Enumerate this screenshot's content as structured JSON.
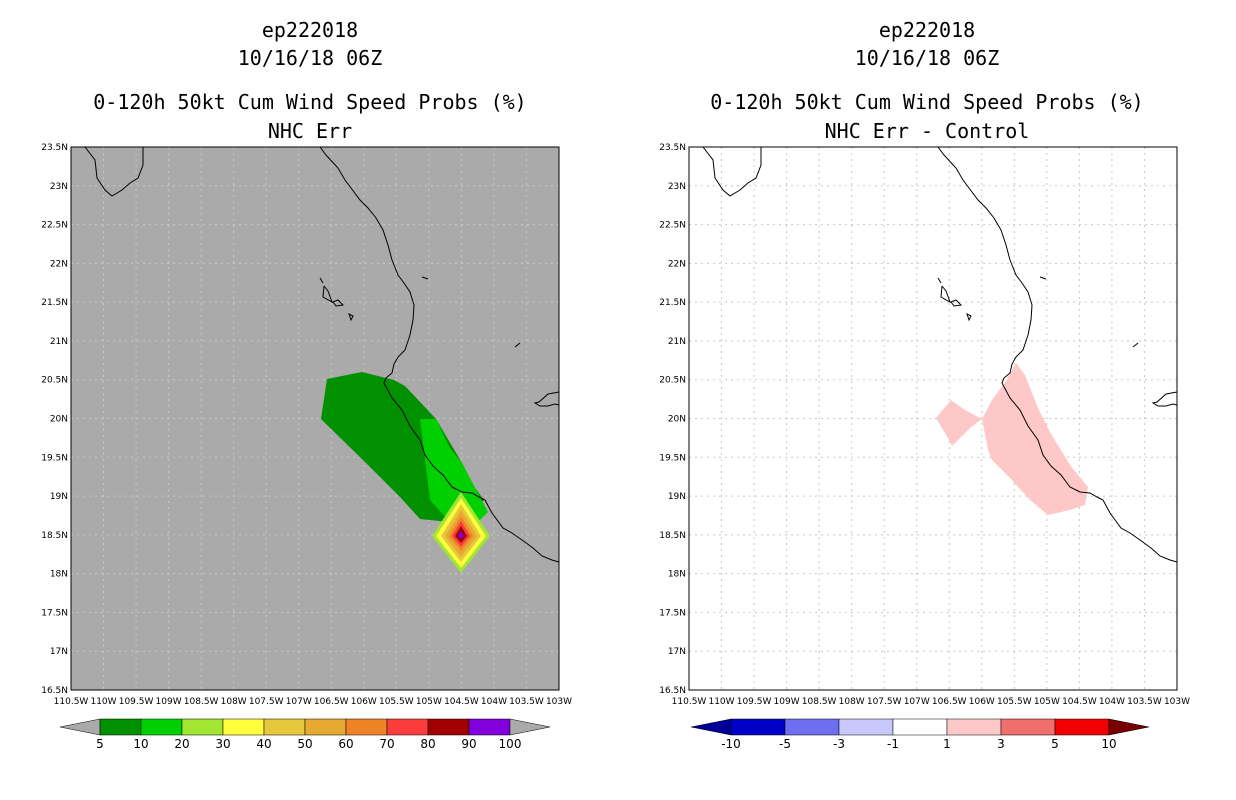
{
  "left": {
    "title_line1": "ep222018",
    "title_line2": "10/16/18 06Z",
    "title_line3": "0-120h 50kt Cum Wind Speed Probs (%)",
    "title_line4": "NHC Err",
    "colorbar_labels": [
      "5",
      "10",
      "20",
      "30",
      "40",
      "50",
      "60",
      "70",
      "80",
      "90",
      "100"
    ],
    "colorbar_colors": [
      "#009000",
      "#00d000",
      "#a0e632",
      "#ffff3c",
      "#e6c83c",
      "#e6aa32",
      "#f08228",
      "#fa3c3c",
      "#a00000",
      "#8200dc"
    ],
    "colorbar_under": "#aaaaaa",
    "colorbar_over": "#aaaaaa",
    "background": "#aaaaaa"
  },
  "right": {
    "title_line1": "ep222018",
    "title_line2": "10/16/18 06Z",
    "title_line3": "0-120h 50kt Cum Wind Speed Probs (%)",
    "title_line4": "NHC Err - Control",
    "colorbar_labels": [
      "-10",
      "-5",
      "-3",
      "-1",
      "1",
      "3",
      "5",
      "10"
    ],
    "colorbar_colors": [
      "#0000c8",
      "#6e6ef0",
      "#c8c8ff",
      "#ffffff",
      "#ffc8c8",
      "#f06e6e",
      "#f00000"
    ],
    "colorbar_under": "#000096",
    "colorbar_over": "#780000",
    "background": "#ffffff"
  },
  "axes": {
    "lat_labels": [
      "23.5N",
      "23N",
      "22.5N",
      "22N",
      "21.5N",
      "21N",
      "20.5N",
      "20N",
      "19.5N",
      "19N",
      "18.5N",
      "18N",
      "17.5N",
      "17N",
      "16.5N"
    ],
    "lon_labels": [
      "110.5W",
      "110W",
      "109.5W",
      "109W",
      "108.5W",
      "108W",
      "107.5W",
      "107W",
      "106.5W",
      "106W",
      "105.5W",
      "105W",
      "104.5W",
      "104W",
      "103.5W",
      "103W"
    ]
  }
}
